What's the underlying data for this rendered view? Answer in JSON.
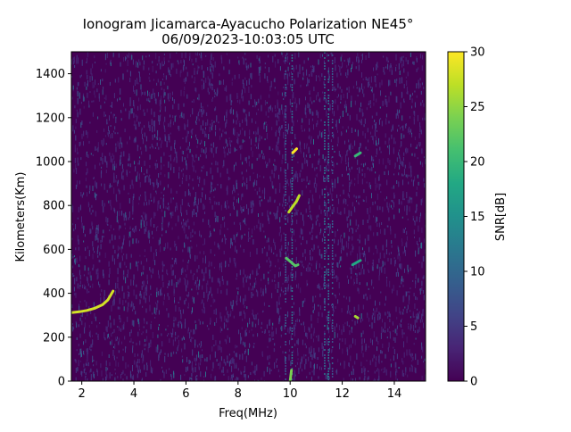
{
  "chart_data": {
    "type": "heatmap",
    "title": [
      "Ionogram Jicamarca-Ayacucho Polarization NE45°",
      "06/09/2023-10:03:05 UTC"
    ],
    "xlabel": "Freq(MHz)",
    "ylabel": "Kilometers(Km)",
    "colorbar_label": "SNR[dB]",
    "xlim": [
      1.6,
      15.2
    ],
    "ylim": [
      0,
      1500
    ],
    "clim": [
      0,
      30
    ],
    "colormap": "viridis",
    "x_ticks": [
      2,
      4,
      6,
      8,
      10,
      12,
      14
    ],
    "x_tick_labels": [
      "2",
      "4",
      "6",
      "8",
      "10",
      "12",
      "14"
    ],
    "y_ticks": [
      0,
      200,
      400,
      600,
      800,
      1000,
      1200,
      1400
    ],
    "y_tick_labels": [
      "0",
      "200",
      "400",
      "600",
      "800",
      "1000",
      "1200",
      "1400"
    ],
    "colorbar_ticks": [
      0,
      5,
      10,
      15,
      20,
      25,
      30
    ],
    "colorbar_tick_labels": [
      "0",
      "5",
      "10",
      "15",
      "20",
      "25",
      "30"
    ],
    "grid": false,
    "background_snr_db": 0,
    "echo_traces": [
      {
        "points": [
          [
            1.6,
            312
          ],
          [
            1.9,
            316
          ],
          [
            2.2,
            322
          ],
          [
            2.5,
            332
          ],
          [
            2.8,
            348
          ],
          [
            3.0,
            370
          ],
          [
            3.1,
            390
          ],
          [
            3.2,
            410
          ]
        ],
        "snr_db": 28
      },
      {
        "points": [
          [
            9.95,
            770
          ],
          [
            10.1,
            795
          ],
          [
            10.25,
            820
          ],
          [
            10.35,
            845
          ]
        ],
        "snr_db": 27
      },
      {
        "points": [
          [
            10.1,
            1040
          ],
          [
            10.25,
            1058
          ]
        ],
        "snr_db": 30
      },
      {
        "points": [
          [
            9.85,
            560
          ],
          [
            10.0,
            545
          ],
          [
            10.2,
            525
          ],
          [
            10.3,
            530
          ]
        ],
        "snr_db": 22
      },
      {
        "points": [
          [
            12.5,
            1025
          ],
          [
            12.7,
            1040
          ]
        ],
        "snr_db": 20
      },
      {
        "points": [
          [
            12.4,
            530
          ],
          [
            12.7,
            550
          ]
        ],
        "snr_db": 18
      },
      {
        "points": [
          [
            12.5,
            295
          ],
          [
            12.6,
            288
          ]
        ],
        "snr_db": 26
      },
      {
        "points": [
          [
            10.0,
            0
          ],
          [
            10.05,
            50
          ]
        ],
        "snr_db": 24
      }
    ],
    "interference_bands_mhz": [
      {
        "x": 9.8,
        "snr_db": 6
      },
      {
        "x": 10.05,
        "snr_db": 8
      },
      {
        "x": 11.3,
        "snr_db": 9
      },
      {
        "x": 11.45,
        "snr_db": 9
      },
      {
        "x": 11.6,
        "snr_db": 6
      }
    ]
  }
}
